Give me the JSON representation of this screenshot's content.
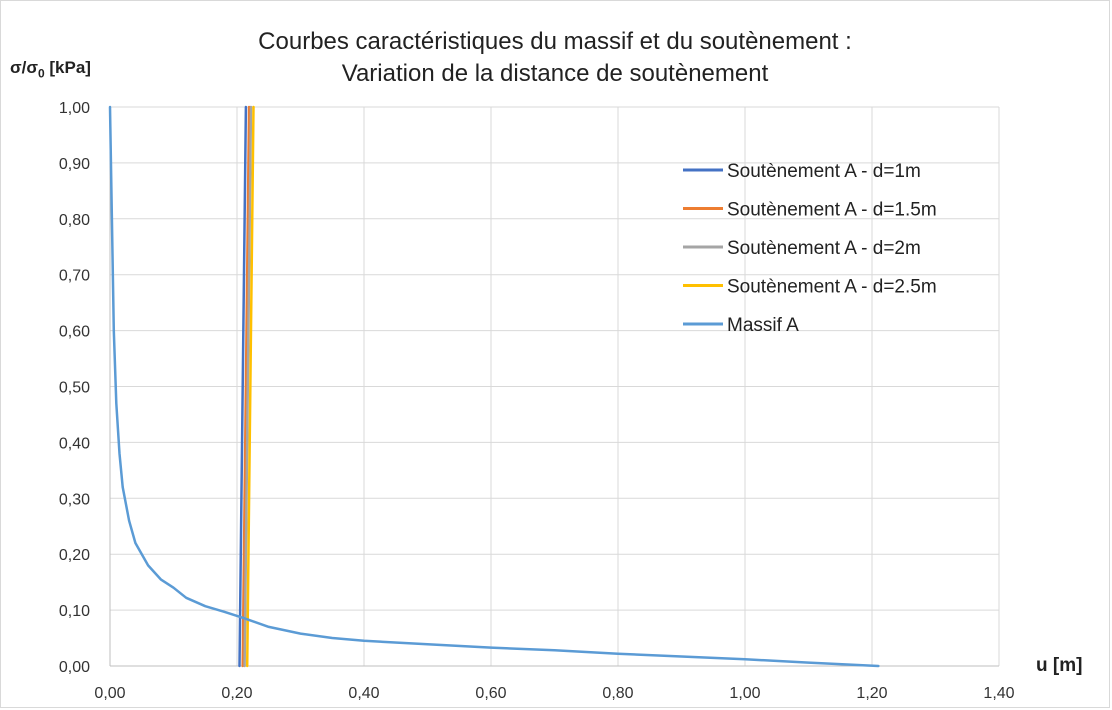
{
  "chart_data": {
    "type": "line",
    "title": "Courbes caractéristiques du massif et du soutènement :",
    "subtitle": "Variation de la distance de soutènement",
    "ylabel": "σ/σ",
    "ylabel_sub": "0",
    "ylabel_unit": " [kPa]",
    "xlabel": "u [m]",
    "xlim": [
      0,
      1.4
    ],
    "ylim": [
      0,
      1.0
    ],
    "x_ticks": [
      "0,00",
      "0,20",
      "0,40",
      "0,60",
      "0,80",
      "1,00",
      "1,20",
      "1,40"
    ],
    "y_ticks": [
      "0,00",
      "0,10",
      "0,20",
      "0,30",
      "0,40",
      "0,50",
      "0,60",
      "0,70",
      "0,80",
      "0,90",
      "1,00"
    ],
    "grid": true,
    "legend_position": "top-right",
    "series": [
      {
        "name": "Soutènement A - d=1m",
        "color": "#4472C4",
        "points": [
          [
            0.204,
            0
          ],
          [
            0.214,
            1.0
          ]
        ]
      },
      {
        "name": "Soutènement A - d=1.5m",
        "color": "#ED7D31",
        "points": [
          [
            0.209,
            0
          ],
          [
            0.219,
            1.0
          ]
        ]
      },
      {
        "name": "Soutènement A - d=2m",
        "color": "#A5A5A5",
        "points": [
          [
            0.212,
            0
          ],
          [
            0.222,
            1.0
          ]
        ]
      },
      {
        "name": "Soutènement A - d=2.5m",
        "color": "#FFC000",
        "points": [
          [
            0.216,
            0
          ],
          [
            0.226,
            1.0
          ]
        ]
      },
      {
        "name": "Massif A",
        "color": "#5B9BD5",
        "points": [
          [
            0.0,
            1.0
          ],
          [
            0.003,
            0.8
          ],
          [
            0.006,
            0.6
          ],
          [
            0.01,
            0.47
          ],
          [
            0.015,
            0.38
          ],
          [
            0.02,
            0.32
          ],
          [
            0.03,
            0.26
          ],
          [
            0.04,
            0.22
          ],
          [
            0.06,
            0.18
          ],
          [
            0.08,
            0.155
          ],
          [
            0.1,
            0.14
          ],
          [
            0.12,
            0.122
          ],
          [
            0.15,
            0.107
          ],
          [
            0.18,
            0.097
          ],
          [
            0.21,
            0.086
          ],
          [
            0.25,
            0.07
          ],
          [
            0.3,
            0.058
          ],
          [
            0.35,
            0.05
          ],
          [
            0.4,
            0.045
          ],
          [
            0.5,
            0.039
          ],
          [
            0.6,
            0.033
          ],
          [
            0.7,
            0.028
          ],
          [
            0.8,
            0.022
          ],
          [
            0.9,
            0.017
          ],
          [
            1.0,
            0.012
          ],
          [
            1.1,
            0.006
          ],
          [
            1.21,
            0.0
          ]
        ]
      }
    ]
  }
}
